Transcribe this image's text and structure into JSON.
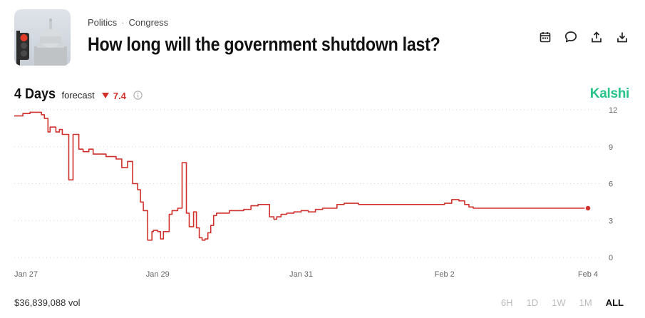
{
  "header": {
    "breadcrumb": [
      "Politics",
      "Congress"
    ],
    "breadcrumb_sep": "·",
    "title": "How long will the government shutdown last?",
    "thumbnail_icon": "capitol-traffic-light-image",
    "actions": [
      "calendar-icon",
      "comment-icon",
      "share-icon",
      "download-icon"
    ]
  },
  "summary": {
    "value": "4 Days",
    "label": "forecast",
    "delta": "7.4",
    "delta_direction": "down",
    "delta_color": "#d0312d",
    "info_icon": "info-icon"
  },
  "brand": {
    "name": "Kalshi",
    "color": "#28c38a"
  },
  "chart_data": {
    "type": "line",
    "y_ticks": [
      "0",
      "3",
      "6",
      "9",
      "12"
    ],
    "ylim": [
      0,
      12
    ],
    "x_ticks": [
      "Jan 27",
      "Jan 29",
      "Jan 31",
      "Feb 2",
      "Feb 4"
    ],
    "xlim": [
      "Jan 27",
      "Feb 4"
    ],
    "grid": true,
    "line_color": "#d0312d",
    "series": [
      {
        "x": [
          0,
          0.12,
          0.22,
          0.32,
          0.38,
          0.42,
          0.47,
          0.5,
          0.58,
          0.63,
          0.67,
          0.72,
          0.76,
          0.82,
          0.9,
          0.96,
          1.04,
          1.1,
          1.2,
          1.28,
          1.35,
          1.42,
          1.5,
          1.58,
          1.65,
          1.72,
          1.76,
          1.8,
          1.86,
          1.92,
          1.94,
          2.0,
          2.04,
          2.08,
          2.16,
          2.2,
          2.28,
          2.34,
          2.4,
          2.44,
          2.5,
          2.54,
          2.58,
          2.62,
          2.66,
          2.7,
          2.74,
          2.78,
          2.82,
          2.9,
          3.0,
          3.1,
          3.2,
          3.3,
          3.4,
          3.5,
          3.56,
          3.62,
          3.66,
          3.72,
          3.8,
          3.9,
          4.0,
          4.1,
          4.2,
          4.3,
          4.4,
          4.5,
          4.6,
          4.7,
          4.8,
          4.9,
          5.0,
          5.2,
          5.5,
          5.8,
          6.0,
          6.1,
          6.2,
          6.28,
          6.34,
          6.4,
          6.6,
          6.8,
          7.0,
          7.2,
          7.4,
          7.6,
          7.8,
          8.0
        ],
        "values": [
          11.5,
          11.7,
          11.8,
          11.8,
          11.6,
          11.3,
          10.2,
          10.6,
          10.2,
          10.4,
          10.0,
          10.0,
          6.3,
          10.0,
          8.8,
          8.6,
          8.8,
          8.4,
          8.4,
          8.2,
          8.2,
          8.0,
          7.3,
          7.8,
          6.0,
          5.5,
          4.5,
          3.8,
          1.4,
          2.1,
          2.2,
          2.1,
          1.5,
          2.1,
          3.5,
          3.8,
          4.0,
          7.7,
          3.6,
          2.5,
          3.7,
          2.4,
          1.6,
          1.4,
          1.5,
          2.0,
          2.6,
          3.4,
          3.6,
          3.6,
          3.8,
          3.8,
          3.9,
          4.2,
          4.3,
          4.3,
          3.3,
          3.1,
          3.3,
          3.5,
          3.6,
          3.7,
          3.8,
          3.7,
          3.9,
          4.0,
          4.0,
          4.3,
          4.4,
          4.4,
          4.3,
          4.3,
          4.3,
          4.3,
          4.3,
          4.3,
          4.4,
          4.7,
          4.6,
          4.3,
          4.1,
          4.0,
          4.0,
          4.0,
          4.0,
          4.0,
          4.0,
          4.0,
          4.0,
          4.0
        ]
      }
    ]
  },
  "footer": {
    "volume": "$36,839,088 vol",
    "ranges": [
      "6H",
      "1D",
      "1W",
      "1M",
      "ALL"
    ],
    "active_range": "ALL"
  }
}
